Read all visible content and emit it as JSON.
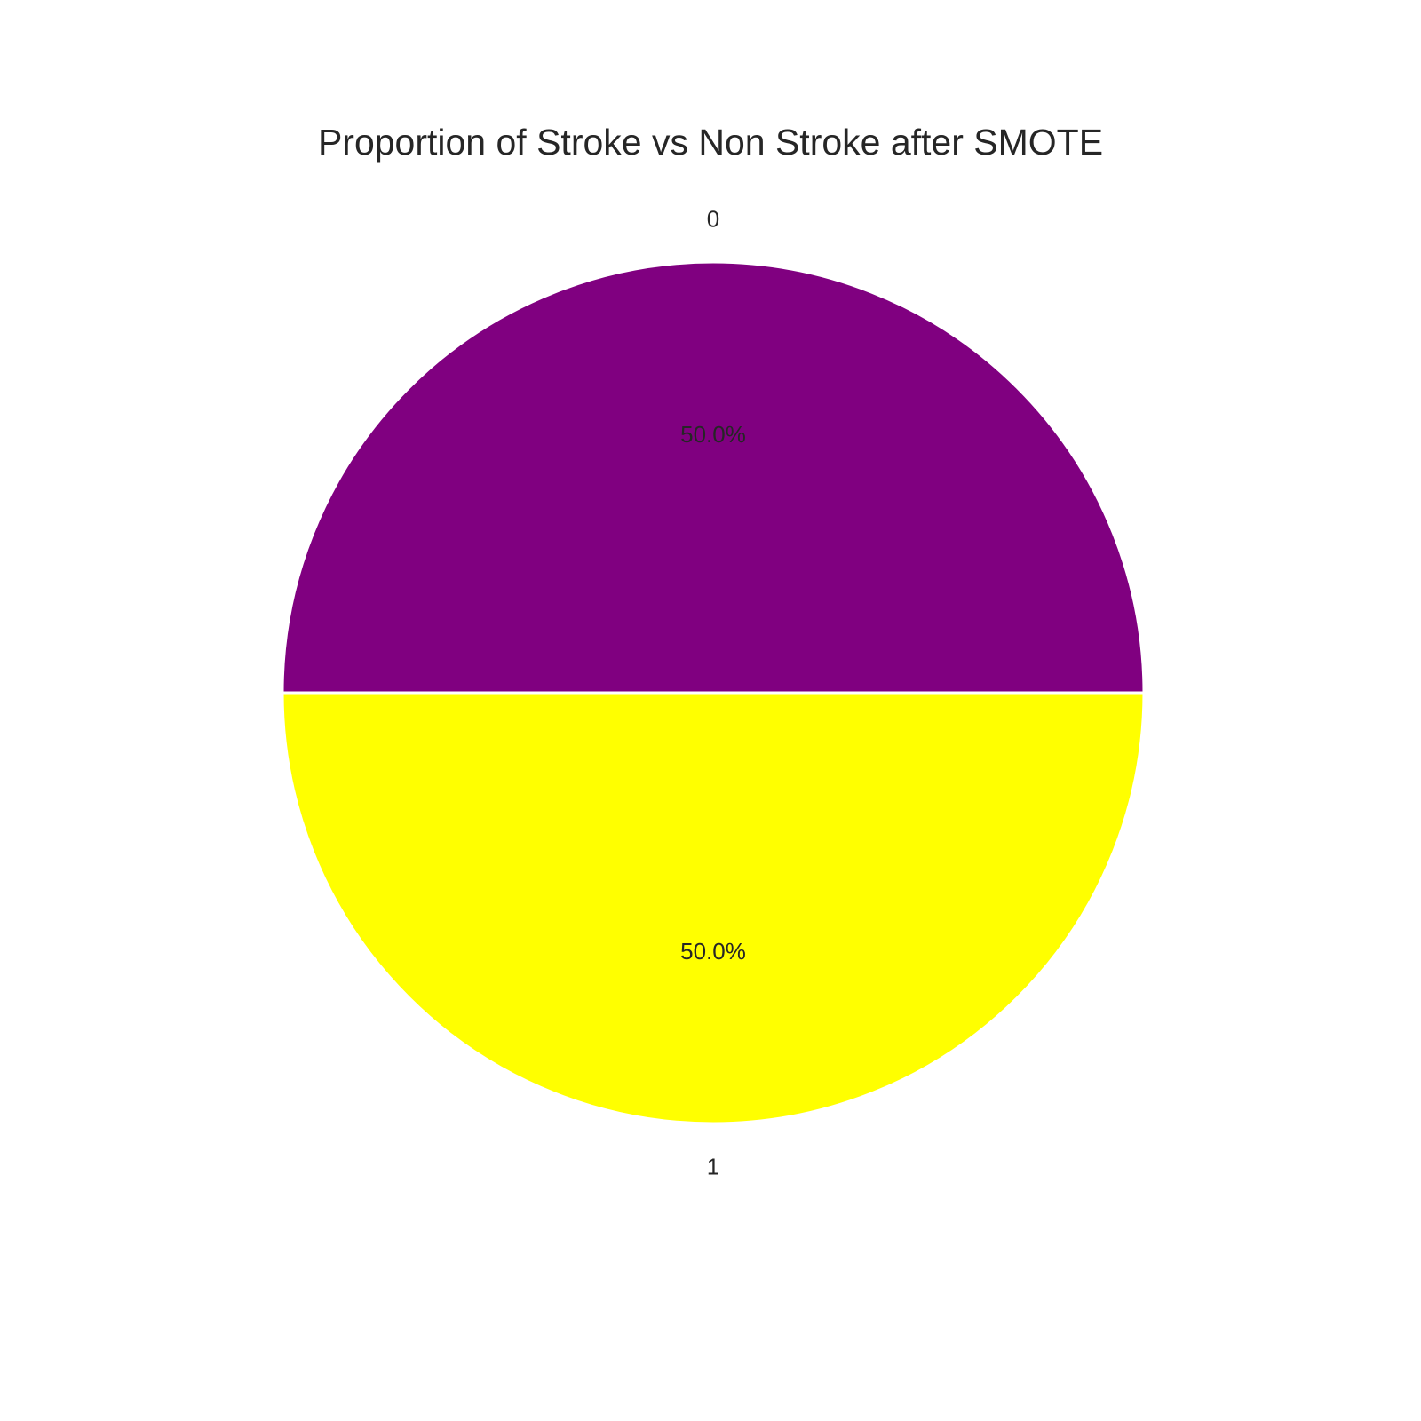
{
  "chart_data": {
    "type": "pie",
    "title": "Proportion of Stroke vs Non Stroke after SMOTE",
    "categories": [
      "0",
      "1"
    ],
    "values": [
      50.0,
      50.0
    ],
    "percent_labels": [
      "50.0%",
      "50.0%"
    ],
    "colors": [
      "#800080",
      "#ffff00"
    ],
    "start_angle": 180,
    "direction": "clockwise",
    "legend": "none"
  }
}
